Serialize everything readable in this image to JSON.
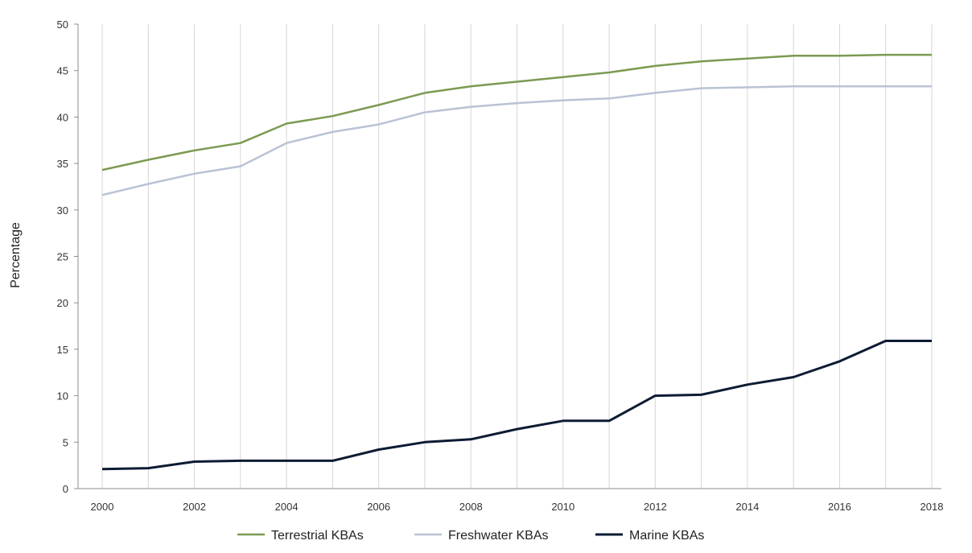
{
  "chart_data": {
    "type": "line",
    "title": "",
    "xlabel": "",
    "ylabel": "Percentage",
    "x": [
      2000,
      2001,
      2002,
      2003,
      2004,
      2005,
      2006,
      2007,
      2008,
      2009,
      2010,
      2011,
      2012,
      2013,
      2014,
      2015,
      2016,
      2017,
      2018
    ],
    "xticks": [
      "2000",
      "2002",
      "2004",
      "2006",
      "2008",
      "2010",
      "2012",
      "2014",
      "2016",
      "2018"
    ],
    "ylim": [
      0,
      50
    ],
    "yticks": [
      "0",
      "5",
      "10",
      "15",
      "20",
      "25",
      "30",
      "35",
      "40",
      "45",
      "50"
    ],
    "grid": "vertical",
    "legend_position": "bottom",
    "series": [
      {
        "name": "Terrestrial KBAs",
        "color": "#7c9a52",
        "values": [
          34.3,
          35.4,
          36.4,
          37.2,
          39.3,
          40.1,
          41.3,
          42.6,
          43.3,
          43.8,
          44.3,
          44.8,
          45.5,
          46.0,
          46.3,
          46.6,
          46.6,
          46.7,
          46.7
        ]
      },
      {
        "name": "Freshwater KBAs",
        "color": "#b9c3d4",
        "values": [
          31.6,
          32.8,
          33.9,
          34.7,
          37.2,
          38.4,
          39.2,
          40.5,
          41.1,
          41.5,
          41.8,
          42.0,
          42.6,
          43.1,
          43.2,
          43.3,
          43.3,
          43.3,
          43.3
        ]
      },
      {
        "name": "Marine KBAs",
        "color": "#0d1b33",
        "values": [
          2.1,
          2.2,
          2.9,
          3.0,
          3.0,
          3.0,
          4.2,
          5.0,
          5.3,
          6.4,
          7.3,
          7.3,
          10.0,
          10.1,
          11.2,
          12.0,
          13.7,
          15.9,
          15.9
        ]
      }
    ]
  }
}
